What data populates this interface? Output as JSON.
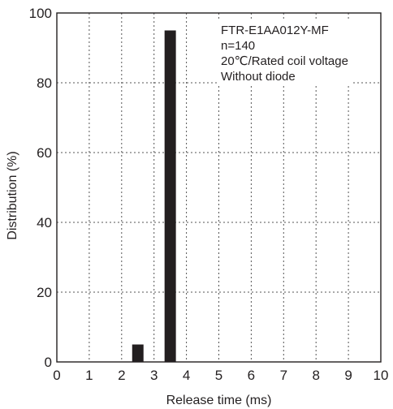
{
  "chart_data": {
    "type": "bar",
    "title": "",
    "xlabel": "Release time (ms)",
    "ylabel": "Distribution (%)",
    "xlim": [
      0,
      10
    ],
    "ylim": [
      0,
      100
    ],
    "xticks": [
      "0",
      "1",
      "2",
      "3",
      "4",
      "5",
      "6",
      "7",
      "8",
      "9",
      "10"
    ],
    "yticks": [
      "0",
      "20",
      "40",
      "60",
      "80",
      "100"
    ],
    "bar_width": 0.35,
    "bars": [
      {
        "x": 2.5,
        "value": 5
      },
      {
        "x": 3.5,
        "value": 95
      }
    ],
    "annotation": [
      "FTR-E1AA012Y-MF",
      "n=140",
      "20℃/Rated coil voltage",
      "Without diode"
    ],
    "grid": true,
    "grid_style": "dotted",
    "legend": "none",
    "colors": {
      "bar": "#231f20",
      "axis": "#231f20",
      "grid": "#555555"
    }
  }
}
